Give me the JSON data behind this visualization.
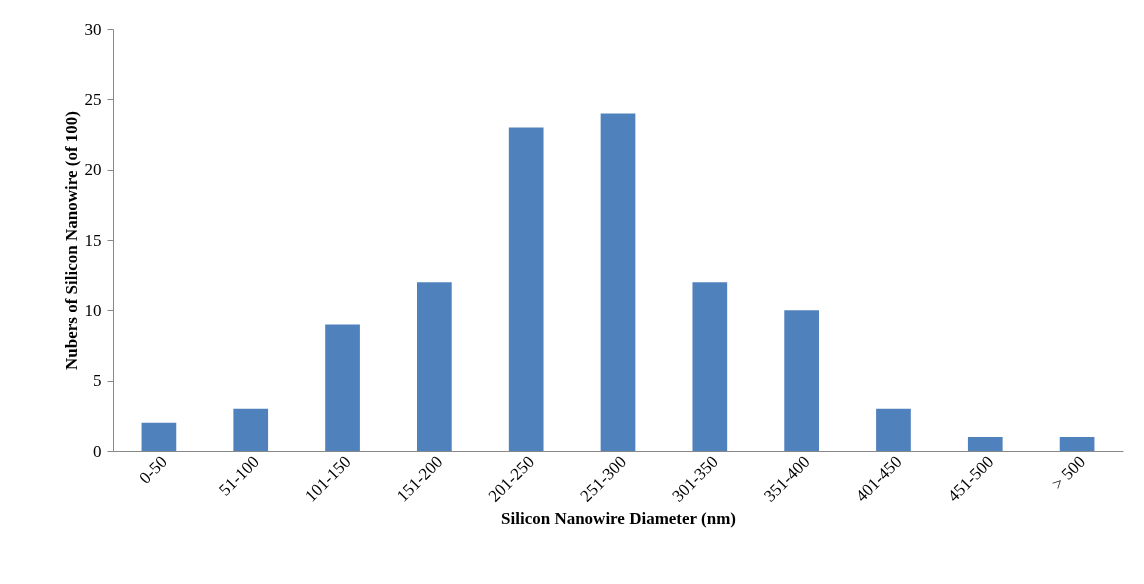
{
  "chart_data": {
    "type": "bar",
    "xlabel": "Silicon Nanowire Diameter (nm)",
    "ylabel": "Nubers of Silicon Nanowire (of 100)",
    "categories": [
      "0-50",
      "51-100",
      "101-150",
      "151-200",
      "201-250",
      "251-300",
      "301-350",
      "351-400",
      "401-450",
      "451-500",
      "> 500"
    ],
    "values": [
      2,
      3,
      9,
      12,
      23,
      24,
      12,
      10,
      3,
      1,
      1
    ],
    "color": "#4f81bd",
    "ylim": [
      0,
      30
    ],
    "yticks": [
      0,
      5,
      10,
      15,
      20,
      25,
      30
    ],
    "grid": false
  }
}
